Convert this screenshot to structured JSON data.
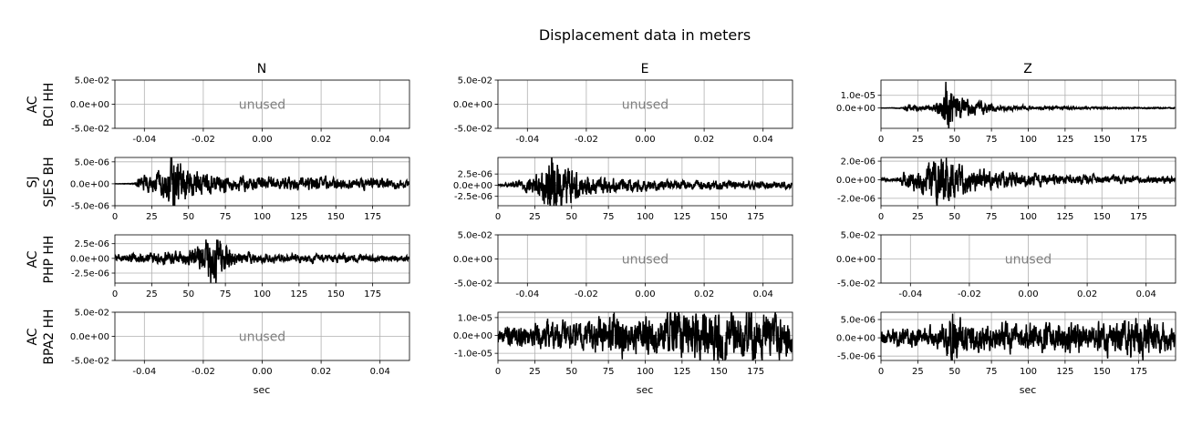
{
  "figure": {
    "title": "Displacement data in meters",
    "columns": [
      "N",
      "E",
      "Z"
    ],
    "rows": [
      {
        "network": "AC",
        "station": "BCI HH"
      },
      {
        "network": "SJ",
        "station": "SJES BH"
      },
      {
        "network": "AC",
        "station": "PHP HH"
      },
      {
        "network": "AC",
        "station": "BPA2 HH"
      }
    ],
    "xlabel": "sec",
    "unused_label": "unused",
    "colors": {
      "trace": "#000000",
      "grid": "#b0b0b0",
      "unused_text": "#808080"
    }
  },
  "chart_data": [
    {
      "type": "line",
      "row": 0,
      "col": 0,
      "unused": true,
      "xlim": [
        -0.05,
        0.05
      ],
      "ylim": [
        -0.05,
        0.05
      ],
      "xticks": [
        "-0.04",
        "-0.02",
        "0.00",
        "0.02",
        "0.04"
      ],
      "xtick_values": [
        -0.04,
        -0.02,
        0,
        0.02,
        0.04
      ],
      "yticks": [
        "5.0e-02",
        "0.0e+00",
        "-5.0e-02"
      ],
      "ytick_values": [
        0.05,
        0,
        -0.05
      ],
      "grid": true
    },
    {
      "type": "line",
      "row": 0,
      "col": 1,
      "unused": true,
      "xlim": [
        -0.05,
        0.05
      ],
      "ylim": [
        -0.05,
        0.05
      ],
      "xticks": [
        "-0.04",
        "-0.02",
        "0.00",
        "0.02",
        "0.04"
      ],
      "xtick_values": [
        -0.04,
        -0.02,
        0,
        0.02,
        0.04
      ],
      "yticks": [
        "5.0e-02",
        "0.0e+00",
        "-5.0e-02"
      ],
      "ytick_values": [
        0.05,
        0,
        -0.05
      ],
      "grid": true
    },
    {
      "type": "line",
      "row": 0,
      "col": 2,
      "unused": false,
      "xlim": [
        0,
        200
      ],
      "ylim": [
        -1.6e-05,
        2.2e-05
      ],
      "xticks": [
        "0",
        "25",
        "50",
        "75",
        "100",
        "125",
        "150",
        "175"
      ],
      "xtick_values": [
        0,
        25,
        50,
        75,
        100,
        125,
        150,
        175
      ],
      "yticks": [
        "1.0e-05",
        "0.0e+00"
      ],
      "ytick_values": [
        1e-05,
        0
      ],
      "grid": true,
      "series": [
        {
          "x": [
            0,
            15,
            18,
            25,
            35,
            42,
            44,
            46,
            50,
            60,
            80,
            110,
            140,
            170,
            199
          ],
          "y": [
            0,
            3e-07,
            2.5e-06,
            1.5e-06,
            1.5e-06,
            8e-06,
            2e-05,
            1.4e-05,
            9e-06,
            5e-06,
            2e-06,
            1e-06,
            6e-07,
            4e-07,
            3e-07
          ]
        }
      ]
    },
    {
      "type": "line",
      "row": 1,
      "col": 0,
      "unused": false,
      "xlim": [
        0,
        200
      ],
      "ylim": [
        -5e-06,
        6e-06
      ],
      "xticks": [
        "0",
        "25",
        "50",
        "75",
        "100",
        "125",
        "150",
        "175"
      ],
      "xtick_values": [
        0,
        25,
        50,
        75,
        100,
        125,
        150,
        175
      ],
      "yticks": [
        "5.0e-06",
        "0.0e+00",
        "-5.0e-06"
      ],
      "ytick_values": [
        5e-06,
        0,
        -5e-06
      ],
      "grid": true,
      "series": [
        {
          "x": [
            0,
            14,
            16,
            25,
            33,
            38,
            42,
            44,
            48,
            55,
            70,
            100,
            130,
            160,
            199
          ],
          "y": [
            0,
            1e-07,
            1.2e-06,
            1.6e-06,
            2.5e-06,
            5e-06,
            5.5e-06,
            4.5e-06,
            3e-06,
            2e-06,
            1.5e-06,
            1.2e-06,
            1.2e-06,
            1e-06,
            8e-07
          ]
        }
      ]
    },
    {
      "type": "line",
      "row": 1,
      "col": 1,
      "unused": false,
      "xlim": [
        0,
        200
      ],
      "ylim": [
        -4.6e-06,
        6.2e-06
      ],
      "xticks": [
        "0",
        "25",
        "50",
        "75",
        "100",
        "125",
        "150",
        "175"
      ],
      "xtick_values": [
        0,
        25,
        50,
        75,
        100,
        125,
        150,
        175
      ],
      "yticks": [
        "2.5e-06",
        "0.0e+00",
        "-2.5e-06"
      ],
      "ytick_values": [
        2.5e-06,
        0,
        -2.5e-06
      ],
      "grid": true,
      "series": [
        {
          "x": [
            0,
            10,
            15,
            20,
            30,
            36,
            40,
            45,
            50,
            60,
            80,
            110,
            140,
            170,
            199
          ],
          "y": [
            2e-07,
            4e-07,
            1e-06,
            1.5e-06,
            2.5e-06,
            5.5e-06,
            5e-06,
            3.8e-06,
            2.8e-06,
            1.8e-06,
            1.2e-06,
            9e-07,
            8e-07,
            7e-07,
            6e-07
          ]
        }
      ]
    },
    {
      "type": "line",
      "row": 1,
      "col": 2,
      "unused": false,
      "xlim": [
        0,
        200
      ],
      "ylim": [
        -2.8e-06,
        2.4e-06
      ],
      "xticks": [
        "0",
        "25",
        "50",
        "75",
        "100",
        "125",
        "150",
        "175"
      ],
      "xtick_values": [
        0,
        25,
        50,
        75,
        100,
        125,
        150,
        175
      ],
      "yticks": [
        "2.0e-06",
        "0.0e+00",
        "-2.0e-06"
      ],
      "ytick_values": [
        2e-06,
        0,
        -2e-06
      ],
      "grid": true,
      "series": [
        {
          "x": [
            0,
            12,
            15,
            20,
            30,
            38,
            42,
            46,
            50,
            60,
            80,
            110,
            140,
            170,
            199
          ],
          "y": [
            1e-07,
            2e-07,
            6e-07,
            8e-07,
            1.2e-06,
            2.2e-06,
            2.6e-06,
            2.3e-06,
            1.6e-06,
            1e-06,
            7e-07,
            5e-07,
            4e-07,
            3e-07,
            3e-07
          ]
        }
      ]
    },
    {
      "type": "line",
      "row": 2,
      "col": 0,
      "unused": false,
      "xlim": [
        0,
        200
      ],
      "ylim": [
        -4.2e-06,
        4e-06
      ],
      "xticks": [
        "0",
        "25",
        "50",
        "75",
        "100",
        "125",
        "150",
        "175"
      ],
      "xtick_values": [
        0,
        25,
        50,
        75,
        100,
        125,
        150,
        175
      ],
      "yticks": [
        "2.5e-06",
        "0.0e+00",
        "-2.5e-06"
      ],
      "ytick_values": [
        2.5e-06,
        0,
        -2.5e-06
      ],
      "grid": true,
      "series": [
        {
          "x": [
            0,
            20,
            30,
            45,
            55,
            62,
            66,
            70,
            75,
            85,
            100,
            130,
            160,
            199
          ],
          "y": [
            5e-07,
            6e-07,
            8e-07,
            1e-06,
            1.4e-06,
            2.6e-06,
            3.5e-06,
            3e-06,
            1.8e-06,
            8e-07,
            6e-07,
            5e-07,
            5e-07,
            4e-07
          ]
        }
      ]
    },
    {
      "type": "line",
      "row": 2,
      "col": 1,
      "unused": true,
      "xlim": [
        -0.05,
        0.05
      ],
      "ylim": [
        -0.05,
        0.05
      ],
      "xticks": [
        "-0.04",
        "-0.02",
        "0.00",
        "0.02",
        "0.04"
      ],
      "xtick_values": [
        -0.04,
        -0.02,
        0,
        0.02,
        0.04
      ],
      "yticks": [
        "5.0e-02",
        "0.0e+00",
        "-5.0e-02"
      ],
      "ytick_values": [
        0.05,
        0,
        -0.05
      ],
      "grid": true
    },
    {
      "type": "line",
      "row": 2,
      "col": 2,
      "unused": true,
      "xlim": [
        -0.05,
        0.05
      ],
      "ylim": [
        -0.05,
        0.05
      ],
      "xticks": [
        "-0.04",
        "-0.02",
        "0.00",
        "0.02",
        "0.04"
      ],
      "xtick_values": [
        -0.04,
        -0.02,
        0,
        0.02,
        0.04
      ],
      "yticks": [
        "5.0e-02",
        "0.0e+00",
        "-5.0e-02"
      ],
      "ytick_values": [
        0.05,
        0,
        -0.05
      ],
      "grid": true
    },
    {
      "type": "line",
      "row": 3,
      "col": 0,
      "unused": true,
      "xlim": [
        -0.05,
        0.05
      ],
      "ylim": [
        -0.05,
        0.05
      ],
      "xticks": [
        "-0.04",
        "-0.02",
        "0.00",
        "0.02",
        "0.04"
      ],
      "xtick_values": [
        -0.04,
        -0.02,
        0,
        0.02,
        0.04
      ],
      "yticks": [
        "5.0e-02",
        "0.0e+00",
        "-5.0e-02"
      ],
      "ytick_values": [
        0.05,
        0,
        -0.05
      ],
      "grid": true
    },
    {
      "type": "line",
      "row": 3,
      "col": 1,
      "unused": false,
      "xlim": [
        0,
        200
      ],
      "ylim": [
        -1.4e-05,
        1.3e-05
      ],
      "xticks": [
        "0",
        "25",
        "50",
        "75",
        "100",
        "125",
        "150",
        "175"
      ],
      "xtick_values": [
        0,
        25,
        50,
        75,
        100,
        125,
        150,
        175
      ],
      "yticks": [
        "1.0e-05",
        "0.0e+00",
        "-1.0e-05"
      ],
      "ytick_values": [
        1e-05,
        0,
        -1e-05
      ],
      "grid": true,
      "series": [
        {
          "x": [
            0,
            20,
            40,
            60,
            75,
            80,
            90,
            110,
            125,
            140,
            155,
            175,
            199
          ],
          "y": [
            4e-06,
            5e-06,
            6e-06,
            7e-06,
            8e-06,
            1.3e-05,
            8e-06,
            9e-06,
            1.2e-05,
            1e-05,
            1.2e-05,
            1.1e-05,
            9e-06
          ]
        }
      ]
    },
    {
      "type": "line",
      "row": 3,
      "col": 2,
      "unused": false,
      "xlim": [
        0,
        200
      ],
      "ylim": [
        -6.2e-06,
        7e-06
      ],
      "xticks": [
        "0",
        "25",
        "50",
        "75",
        "100",
        "125",
        "150",
        "175"
      ],
      "xtick_values": [
        0,
        25,
        50,
        75,
        100,
        125,
        150,
        175
      ],
      "yticks": [
        "5.0e-06",
        "0.0e+00",
        "-5.0e-06"
      ],
      "ytick_values": [
        5e-06,
        0,
        -5e-06
      ],
      "grid": true,
      "series": [
        {
          "x": [
            0,
            20,
            40,
            46,
            48,
            55,
            70,
            100,
            130,
            150,
            175,
            199
          ],
          "y": [
            1.5e-06,
            2e-06,
            2.5e-06,
            4.5e-06,
            7e-06,
            3.5e-06,
            3e-06,
            2.8e-06,
            3.5e-06,
            3.2e-06,
            4.5e-06,
            2.5e-06
          ]
        }
      ]
    }
  ]
}
